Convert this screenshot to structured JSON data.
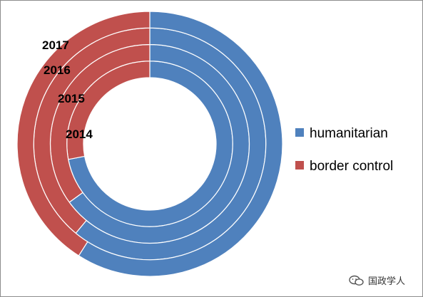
{
  "chart_data": {
    "type": "donut",
    "rings_inner_to_outer": [
      "2014",
      "2015",
      "2016",
      "2017"
    ],
    "series": [
      {
        "name": "humanitarian",
        "color": "#4f81bd",
        "values": [
          72,
          65,
          61,
          59
        ]
      },
      {
        "name": "border control",
        "color": "#c0504d",
        "values": [
          28,
          35,
          39,
          41
        ]
      }
    ],
    "legend_position": "right",
    "start_angle": "12 o'clock, clockwise"
  },
  "watermark": {
    "text": "国政学人",
    "icon": "wechat-icon"
  }
}
